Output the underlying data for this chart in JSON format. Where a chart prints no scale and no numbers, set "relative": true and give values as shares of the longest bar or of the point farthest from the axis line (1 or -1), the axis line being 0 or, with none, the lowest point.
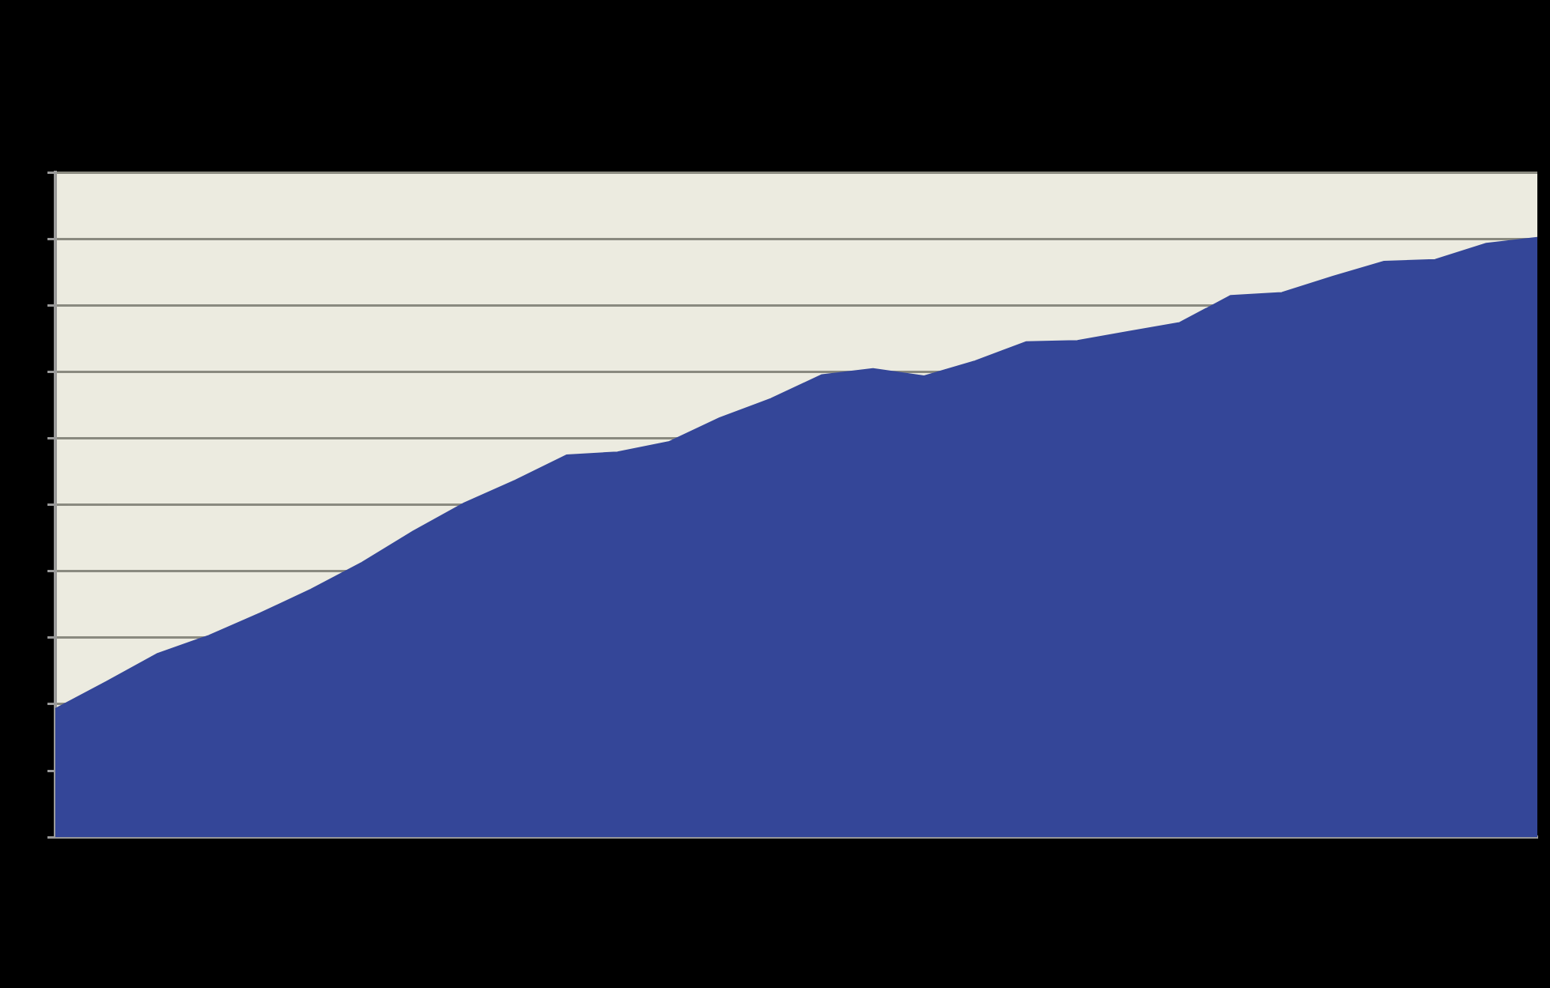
{
  "chart_data": {
    "type": "area",
    "relative": true,
    "grid": "y",
    "legend": false,
    "categories": [
      null,
      null,
      null,
      null,
      null,
      null,
      null,
      null,
      null,
      null,
      null,
      null,
      null,
      null,
      null,
      null,
      null,
      null,
      null,
      null,
      null,
      null,
      null,
      null,
      null,
      null,
      null,
      null,
      null,
      null
    ],
    "series": [
      {
        "color": "#344698",
        "values": [
          0.214,
          0.259,
          0.306,
          0.336,
          0.373,
          0.413,
          0.458,
          0.51,
          0.557,
          0.595,
          0.637,
          0.642,
          0.659,
          0.699,
          0.731,
          0.771,
          0.781,
          0.769,
          0.794,
          0.826,
          0.828,
          0.843,
          0.858,
          0.903,
          0.908,
          0.935,
          0.96,
          0.963,
          0.99,
          1
        ]
      }
    ]
  }
}
